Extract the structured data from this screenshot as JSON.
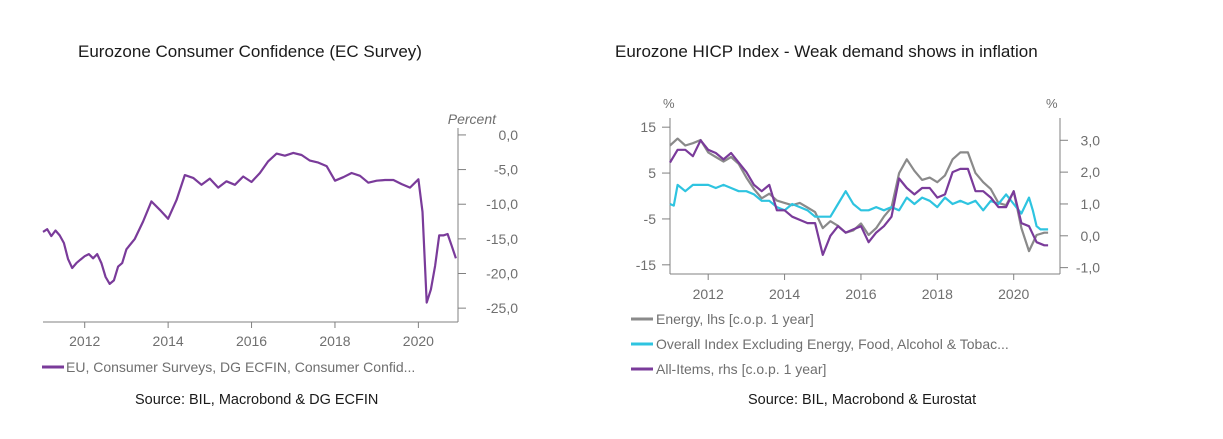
{
  "chart_data": [
    {
      "type": "line",
      "title": "Eurozone Consumer Confidence (EC Survey)",
      "ylabel": "Percent",
      "y_axis_side": "right",
      "ylim": [
        -27,
        1
      ],
      "xlim": [
        2011.0,
        2020.95
      ],
      "yticks": [
        0,
        -5,
        -10,
        -15,
        -20,
        -25
      ],
      "ytick_labels": [
        "0,0",
        "-5,0",
        "-10,0",
        "-15,0",
        "-20,0",
        "-25,0"
      ],
      "xticks": [
        2012,
        2014,
        2016,
        2018,
        2020
      ],
      "xtick_labels": [
        "2012",
        "2014",
        "2016",
        "2018",
        "2020"
      ],
      "series": [
        {
          "name": "EU, Consumer Surveys, DG ECFIN, Consumer Confid...",
          "color": "#7a3b9a",
          "x": [
            2011.0,
            2011.1,
            2011.2,
            2011.3,
            2011.4,
            2011.5,
            2011.6,
            2011.7,
            2011.8,
            2011.9,
            2012.0,
            2012.1,
            2012.2,
            2012.3,
            2012.4,
            2012.5,
            2012.6,
            2012.7,
            2012.8,
            2012.9,
            2013.0,
            2013.2,
            2013.4,
            2013.6,
            2013.8,
            2014.0,
            2014.2,
            2014.4,
            2014.6,
            2014.8,
            2015.0,
            2015.2,
            2015.4,
            2015.6,
            2015.8,
            2016.0,
            2016.2,
            2016.4,
            2016.6,
            2016.8,
            2017.0,
            2017.2,
            2017.4,
            2017.6,
            2017.8,
            2018.0,
            2018.2,
            2018.4,
            2018.6,
            2018.8,
            2019.0,
            2019.2,
            2019.4,
            2019.6,
            2019.8,
            2020.0,
            2020.1,
            2020.2,
            2020.3,
            2020.4,
            2020.5,
            2020.6,
            2020.7,
            2020.8,
            2020.9
          ],
          "y": [
            -14.0,
            -13.6,
            -14.6,
            -13.8,
            -14.5,
            -15.6,
            -17.9,
            -19.2,
            -18.5,
            -18.0,
            -17.5,
            -17.2,
            -17.8,
            -17.2,
            -18.5,
            -20.5,
            -21.5,
            -21.0,
            -19.0,
            -18.5,
            -16.5,
            -15.0,
            -12.5,
            -9.6,
            -10.8,
            -12.1,
            -9.4,
            -5.8,
            -6.2,
            -7.2,
            -6.3,
            -7.6,
            -6.7,
            -7.2,
            -6.0,
            -6.8,
            -5.5,
            -3.8,
            -2.7,
            -3.0,
            -2.6,
            -2.9,
            -3.7,
            -4.0,
            -4.5,
            -6.6,
            -6.1,
            -5.5,
            -5.9,
            -6.9,
            -6.6,
            -6.5,
            -6.5,
            -7.1,
            -7.6,
            -6.4,
            -11.1,
            -24.2,
            -22.3,
            -18.9,
            -14.5,
            -14.5,
            -14.3,
            -16.0,
            -17.8
          ]
        }
      ],
      "source": "Source: BIL, Macrobond & DG ECFIN"
    },
    {
      "type": "line",
      "title": "Eurozone HICP Index - Weak demand shows in inflation",
      "ylabel_left": "%",
      "ylabel_right": "%",
      "ylim_left": [
        -17,
        17
      ],
      "ylim_right": [
        -1.2,
        3.7
      ],
      "xlim": [
        2011.0,
        2020.95
      ],
      "yticks_left": [
        15,
        5,
        -5,
        -15
      ],
      "ytick_labels_left": [
        "15",
        "5",
        "-5",
        "-15"
      ],
      "yticks_right": [
        3,
        2,
        1,
        0,
        -1
      ],
      "ytick_labels_right": [
        "3,0",
        "2,0",
        "1,0",
        "0,0",
        "-1,0"
      ],
      "xticks": [
        2012,
        2014,
        2016,
        2018,
        2020
      ],
      "xtick_labels": [
        "2012",
        "2014",
        "2016",
        "2018",
        "2020"
      ],
      "series": [
        {
          "name": "Energy, lhs [c.o.p. 1 year]",
          "axis": "left",
          "color": "#8a8a8a",
          "x": [
            2011.0,
            2011.2,
            2011.4,
            2011.6,
            2011.8,
            2012.0,
            2012.2,
            2012.4,
            2012.6,
            2012.8,
            2013.0,
            2013.2,
            2013.4,
            2013.6,
            2013.8,
            2014.0,
            2014.2,
            2014.4,
            2014.6,
            2014.8,
            2015.0,
            2015.2,
            2015.4,
            2015.6,
            2015.8,
            2016.0,
            2016.2,
            2016.4,
            2016.6,
            2016.8,
            2017.0,
            2017.2,
            2017.4,
            2017.6,
            2017.8,
            2018.0,
            2018.2,
            2018.4,
            2018.6,
            2018.8,
            2019.0,
            2019.2,
            2019.4,
            2019.6,
            2019.8,
            2020.0,
            2020.2,
            2020.4,
            2020.6,
            2020.8,
            2020.9
          ],
          "y": [
            11.0,
            12.5,
            11.0,
            11.5,
            12.2,
            9.5,
            8.5,
            7.5,
            8.5,
            7.0,
            4.0,
            1.5,
            -0.5,
            0.5,
            -1.0,
            -1.5,
            -2.0,
            -1.5,
            -2.5,
            -3.5,
            -7.0,
            -5.5,
            -6.5,
            -8.0,
            -7.5,
            -6.0,
            -8.5,
            -7.0,
            -4.5,
            -2.5,
            5.0,
            8.0,
            5.5,
            3.5,
            4.0,
            3.0,
            4.5,
            8.0,
            9.5,
            9.5,
            5.0,
            3.0,
            1.5,
            -1.5,
            -2.0,
            1.0,
            -7.0,
            -12.0,
            -8.5,
            -8.0,
            -8.0
          ]
        },
        {
          "name": "Overall Index Excluding Energy, Food, Alcohol & Tobac...",
          "axis": "right",
          "color": "#2ec4e0",
          "x": [
            2011.0,
            2011.1,
            2011.2,
            2011.4,
            2011.6,
            2011.8,
            2012.0,
            2012.2,
            2012.4,
            2012.6,
            2012.8,
            2013.0,
            2013.2,
            2013.4,
            2013.6,
            2013.8,
            2014.0,
            2014.2,
            2014.4,
            2014.6,
            2014.8,
            2015.0,
            2015.2,
            2015.4,
            2015.6,
            2015.8,
            2016.0,
            2016.2,
            2016.4,
            2016.6,
            2016.8,
            2017.0,
            2017.2,
            2017.4,
            2017.6,
            2017.8,
            2018.0,
            2018.2,
            2018.4,
            2018.6,
            2018.8,
            2019.0,
            2019.2,
            2019.4,
            2019.6,
            2019.8,
            2020.0,
            2020.2,
            2020.4,
            2020.5,
            2020.6,
            2020.7,
            2020.8,
            2020.9
          ],
          "y": [
            1.0,
            0.95,
            1.6,
            1.4,
            1.6,
            1.6,
            1.6,
            1.5,
            1.6,
            1.5,
            1.4,
            1.4,
            1.3,
            1.1,
            1.1,
            0.9,
            0.8,
            1.0,
            0.9,
            0.8,
            0.6,
            0.6,
            0.6,
            1.0,
            1.4,
            1.0,
            0.8,
            0.8,
            0.9,
            0.8,
            0.9,
            0.8,
            1.2,
            1.0,
            1.2,
            1.1,
            0.9,
            1.2,
            1.0,
            1.1,
            1.0,
            1.1,
            0.8,
            1.1,
            1.0,
            1.3,
            1.0,
            0.7,
            1.2,
            0.8,
            0.3,
            0.2,
            0.2,
            0.2
          ]
        },
        {
          "name": "All-Items, rhs [c.o.p. 1 year]",
          "axis": "right",
          "color": "#7a3b9a",
          "x": [
            2011.0,
            2011.2,
            2011.4,
            2011.6,
            2011.8,
            2012.0,
            2012.2,
            2012.4,
            2012.6,
            2012.8,
            2013.0,
            2013.2,
            2013.4,
            2013.6,
            2013.8,
            2014.0,
            2014.2,
            2014.4,
            2014.6,
            2014.8,
            2015.0,
            2015.2,
            2015.4,
            2015.6,
            2015.8,
            2016.0,
            2016.2,
            2016.4,
            2016.6,
            2016.8,
            2017.0,
            2017.2,
            2017.4,
            2017.6,
            2017.8,
            2018.0,
            2018.2,
            2018.4,
            2018.6,
            2018.8,
            2019.0,
            2019.2,
            2019.4,
            2019.6,
            2019.8,
            2020.0,
            2020.2,
            2020.4,
            2020.6,
            2020.8,
            2020.9
          ],
          "y": [
            2.3,
            2.7,
            2.7,
            2.5,
            3.0,
            2.7,
            2.6,
            2.4,
            2.6,
            2.3,
            2.0,
            1.6,
            1.4,
            1.6,
            0.8,
            0.8,
            0.6,
            0.5,
            0.4,
            0.4,
            -0.6,
            0.0,
            0.3,
            0.1,
            0.2,
            0.3,
            -0.2,
            0.1,
            0.3,
            0.6,
            1.8,
            1.5,
            1.3,
            1.5,
            1.5,
            1.2,
            1.3,
            2.0,
            2.1,
            2.1,
            1.4,
            1.4,
            1.2,
            0.9,
            0.9,
            1.4,
            0.4,
            0.3,
            -0.2,
            -0.3,
            -0.3
          ]
        }
      ],
      "source": "Source: BIL, Macrobond & Eurostat"
    }
  ]
}
